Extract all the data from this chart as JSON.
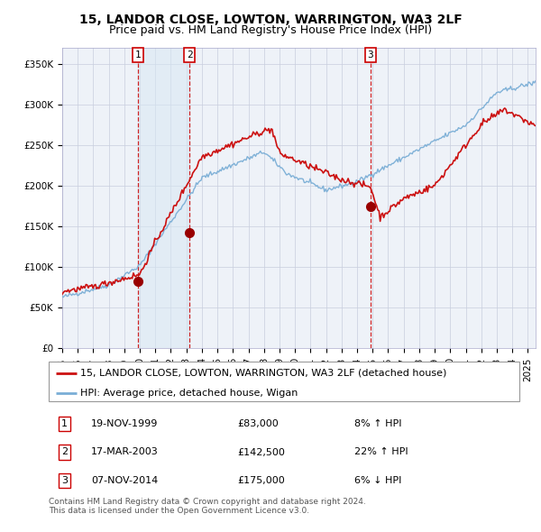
{
  "title": "15, LANDOR CLOSE, LOWTON, WARRINGTON, WA3 2LF",
  "subtitle": "Price paid vs. HM Land Registry's House Price Index (HPI)",
  "ylim": [
    0,
    370000
  ],
  "yticks": [
    0,
    50000,
    100000,
    150000,
    200000,
    250000,
    300000,
    350000
  ],
  "ytick_labels": [
    "£0",
    "£50K",
    "£100K",
    "£150K",
    "£200K",
    "£250K",
    "£300K",
    "£350K"
  ],
  "xlim_start": 1995.0,
  "xlim_end": 2025.5,
  "transaction_dates": [
    1999.88,
    2003.21,
    2014.85
  ],
  "transaction_prices": [
    83000,
    142500,
    175000
  ],
  "transaction_labels": [
    "1",
    "2",
    "3"
  ],
  "shade_regions": [
    [
      1999.88,
      2003.21
    ]
  ],
  "vline_color": "#cc0000",
  "dot_color": "#990000",
  "hpi_color": "#7aaed6",
  "price_color": "#cc1111",
  "background_color": "#eef2f8",
  "grid_color": "#c8cede",
  "shade_color": "#d8e8f4",
  "legend_label_price": "15, LANDOR CLOSE, LOWTON, WARRINGTON, WA3 2LF (detached house)",
  "legend_label_hpi": "HPI: Average price, detached house, Wigan",
  "table_rows": [
    [
      "1",
      "19-NOV-1999",
      "£83,000",
      "8% ↑ HPI"
    ],
    [
      "2",
      "17-MAR-2003",
      "£142,500",
      "22% ↑ HPI"
    ],
    [
      "3",
      "07-NOV-2014",
      "£175,000",
      "6% ↓ HPI"
    ]
  ],
  "footer": "Contains HM Land Registry data © Crown copyright and database right 2024.\nThis data is licensed under the Open Government Licence v3.0.",
  "title_fontsize": 10,
  "subtitle_fontsize": 9,
  "tick_fontsize": 7.5,
  "legend_fontsize": 8,
  "table_fontsize": 8,
  "footer_fontsize": 6.5
}
